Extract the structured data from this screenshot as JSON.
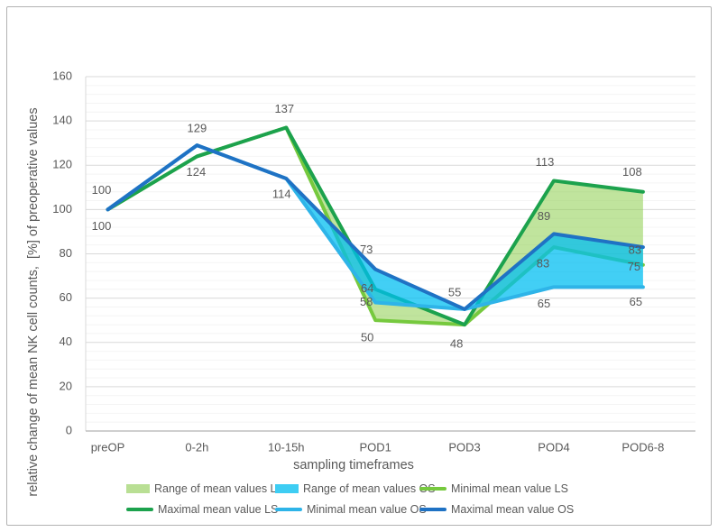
{
  "chart_data": {
    "type": "line",
    "title": "",
    "xlabel": "sampling timeframes",
    "ylabel": "relative change of mean NK cell counts,  [%] of preoperative values",
    "categories": [
      "preOP",
      "0-2h",
      "10-15h",
      "POD1",
      "POD3",
      "POD4",
      "POD6-8"
    ],
    "ylim": [
      0,
      160
    ],
    "yticks": [
      0,
      20,
      40,
      60,
      80,
      100,
      120,
      140,
      160
    ],
    "minor_ytick_step": 4,
    "grid": "horizontal-major-and-minor",
    "legend_position": "bottom",
    "series": [
      {
        "name": "Maximal mean value LS",
        "color": "#1CA24D",
        "values": [
          100,
          124,
          137,
          64,
          48,
          113,
          108
        ],
        "labels": [
          "100",
          "124",
          "137",
          "64",
          "48",
          "113",
          "108"
        ]
      },
      {
        "name": "Minimal mean value LS",
        "color": "#76C93E",
        "values": [
          100,
          124,
          137,
          50,
          48,
          83,
          75
        ],
        "labels": [
          null,
          null,
          null,
          "50",
          null,
          "83",
          "75"
        ]
      },
      {
        "name": "Maximal mean value OS",
        "color": "#1F72C4",
        "values": [
          100,
          129,
          114,
          73,
          55,
          89,
          83
        ],
        "labels": [
          "100",
          "129",
          "114",
          "73",
          "55",
          "89",
          "83"
        ]
      },
      {
        "name": "Minimal mean value OS",
        "color": "#2EB4E8",
        "values": [
          100,
          129,
          114,
          58,
          55,
          65,
          65
        ],
        "labels": [
          null,
          null,
          null,
          "58",
          null,
          "65",
          "65"
        ]
      }
    ],
    "bands": [
      {
        "name": "Range of mean values LS",
        "max_series": "Maximal mean value LS",
        "min_series": "Minimal mean value LS",
        "fill": "rgba(141,206,77,0.55)"
      },
      {
        "name": "Range of mean values OS",
        "max_series": "Maximal mean value OS",
        "min_series": "Minimal mean value OS",
        "fill": "rgba(0,190,242,0.74)"
      }
    ],
    "legend": [
      [
        {
          "label": "Range of mean values LS",
          "swatch": "fill",
          "color": "#B9DF94"
        },
        {
          "label": "Range of mean values OS",
          "swatch": "fill",
          "color": "#3ECDF3"
        },
        {
          "label": "Minimal mean value LS",
          "swatch": "line",
          "color": "#76C93E"
        }
      ],
      [
        {
          "label": "Maximal mean value LS",
          "swatch": "line",
          "color": "#1CA24D"
        },
        {
          "label": "Minimal mean value OS",
          "swatch": "line",
          "color": "#2EB4E8"
        },
        {
          "label": "Maximal mean value OS",
          "swatch": "line",
          "color": "#1F72C4"
        }
      ]
    ],
    "colors": {
      "text": "#595959",
      "grid_major": "#D9D9D9",
      "grid_minor": "#F4F4F4",
      "axis_line": "#BFBFBF",
      "frame_border": "#B3B3B3"
    }
  }
}
